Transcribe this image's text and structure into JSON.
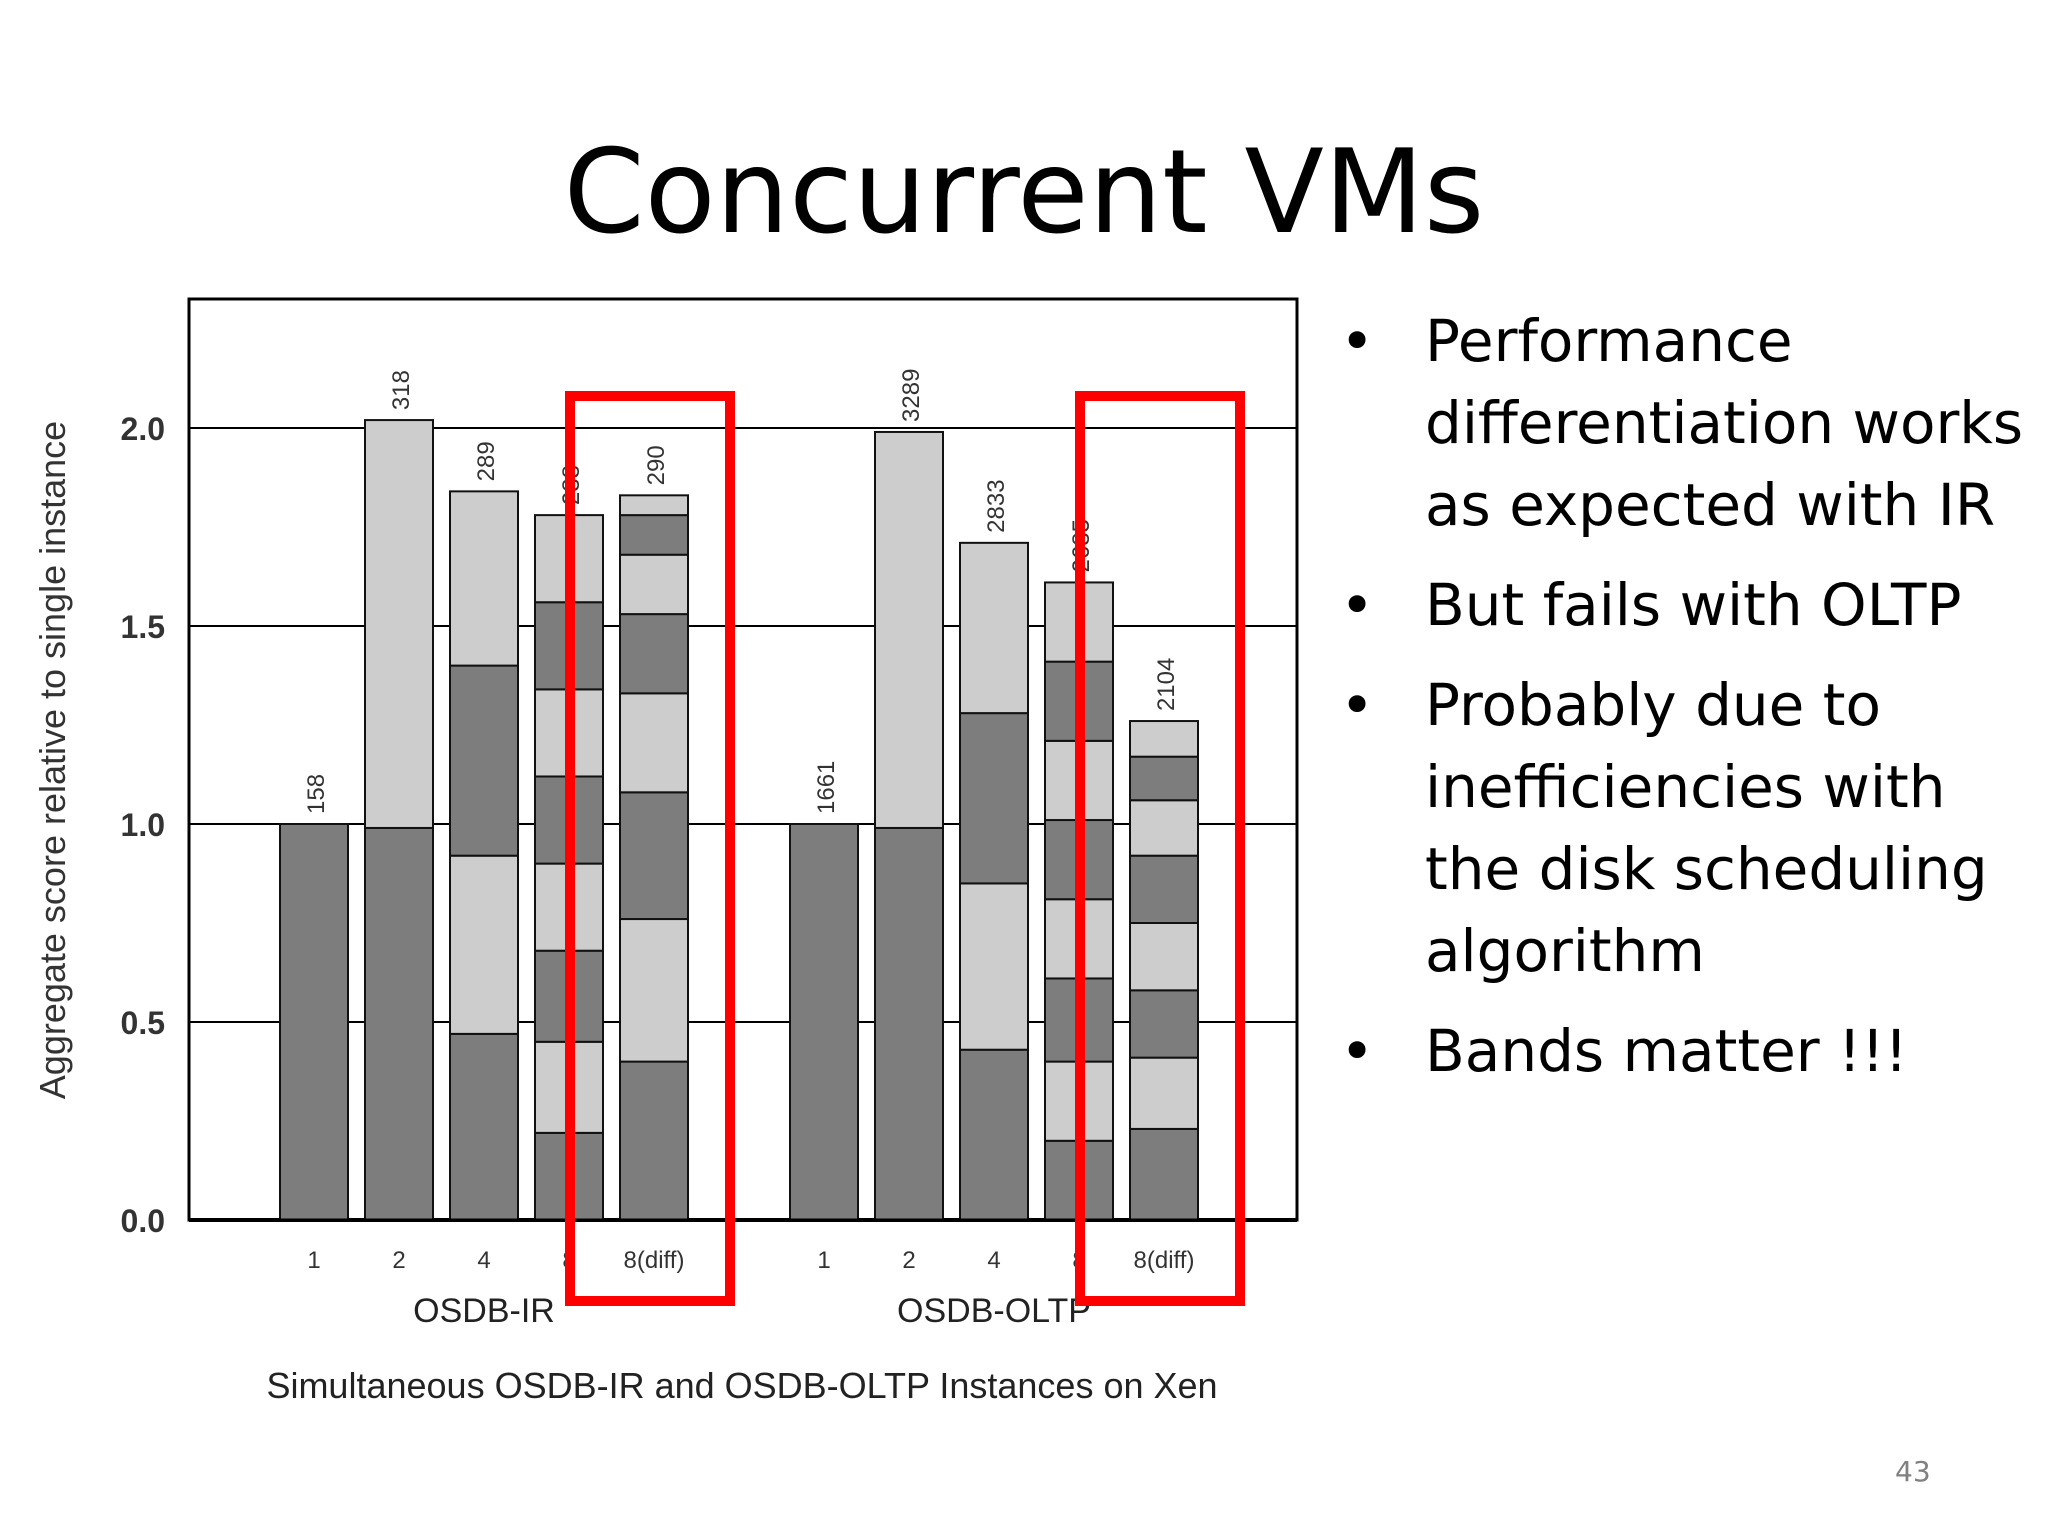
{
  "slide": {
    "title": "Concurrent VMs",
    "bullets": [
      "Performance differentiation works as expected with IR",
      "But fails with OLTP",
      "Probably due to inefficiencies with the disk scheduling algorithm",
      "Bands matter !!!"
    ],
    "page_number": "43"
  },
  "colors": {
    "dark_band": "#7d7d7d",
    "light_band": "#cdcdcd",
    "highlight": "#ff0000"
  },
  "chart_data": {
    "type": "bar",
    "stacked": true,
    "title": "",
    "caption": "Simultaneous OSDB-IR and OSDB-OLTP Instances on Xen",
    "ylabel": "Aggregate score relative to single instance",
    "ylim": [
      0,
      2.3
    ],
    "yticks": [
      "0.0",
      "0.5",
      "1.0",
      "1.5",
      "2.0"
    ],
    "grid": true,
    "groups": [
      {
        "name": "OSDB-IR",
        "bars": [
          {
            "category": "1",
            "label": "158",
            "segments": [
              1.0
            ]
          },
          {
            "category": "2",
            "label": "318",
            "segments": [
              0.99,
              1.03
            ]
          },
          {
            "category": "4",
            "label": "289",
            "segments": [
              0.47,
              0.45,
              0.48,
              0.44
            ]
          },
          {
            "category": "8",
            "label": "288",
            "segments": [
              0.22,
              0.23,
              0.23,
              0.22,
              0.22,
              0.22,
              0.22,
              0.22
            ]
          },
          {
            "category": "8(diff)",
            "label": "290",
            "segments": [
              0.4,
              0.36,
              0.32,
              0.25,
              0.2,
              0.15,
              0.1,
              0.05
            ]
          }
        ]
      },
      {
        "name": "OSDB-OLTP",
        "bars": [
          {
            "category": "1",
            "label": "1661",
            "segments": [
              1.0
            ]
          },
          {
            "category": "2",
            "label": "3289",
            "segments": [
              0.99,
              1.0
            ]
          },
          {
            "category": "4",
            "label": "2833",
            "segments": [
              0.43,
              0.42,
              0.43,
              0.43
            ]
          },
          {
            "category": "8",
            "label": "2685",
            "segments": [
              0.2,
              0.2,
              0.21,
              0.2,
              0.2,
              0.2,
              0.2,
              0.2
            ]
          },
          {
            "category": "8(diff)",
            "label": "2104",
            "segments": [
              0.23,
              0.18,
              0.17,
              0.17,
              0.17,
              0.14,
              0.11,
              0.09
            ]
          }
        ]
      }
    ],
    "highlighted_bars": [
      "OSDB-IR 8(diff)",
      "OSDB-OLTP 8(diff)"
    ]
  }
}
